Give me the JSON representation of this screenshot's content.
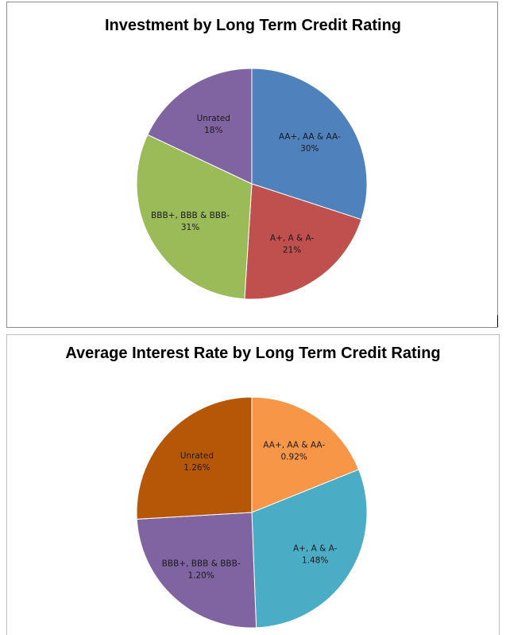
{
  "chart_data": [
    {
      "type": "pie",
      "title": "Investment by Long Term Credit Rating",
      "categories": [
        "AA+, AA & AA-",
        "A+, A & A-",
        "BBB+, BBB & BBB-",
        "Unrated"
      ],
      "values": [
        30,
        21,
        31,
        18
      ],
      "value_labels": [
        "30%",
        "21%",
        "31%",
        "18%"
      ],
      "colors": [
        "#4f81bd",
        "#c0504d",
        "#9bbb59",
        "#8064a2"
      ]
    },
    {
      "type": "pie",
      "title": "Average Interest Rate by Long Term Credit Rating",
      "categories": [
        "AA+, AA & AA-",
        "A+, A & A-",
        "BBB+, BBB & BBB-",
        "Unrated"
      ],
      "values": [
        0.92,
        1.48,
        1.2,
        1.26
      ],
      "value_labels": [
        "0.92%",
        "1.48%",
        "1.20%",
        "1.26%"
      ],
      "colors": [
        "#f79646",
        "#4bacc6",
        "#8064a2",
        "#b65708"
      ]
    }
  ]
}
